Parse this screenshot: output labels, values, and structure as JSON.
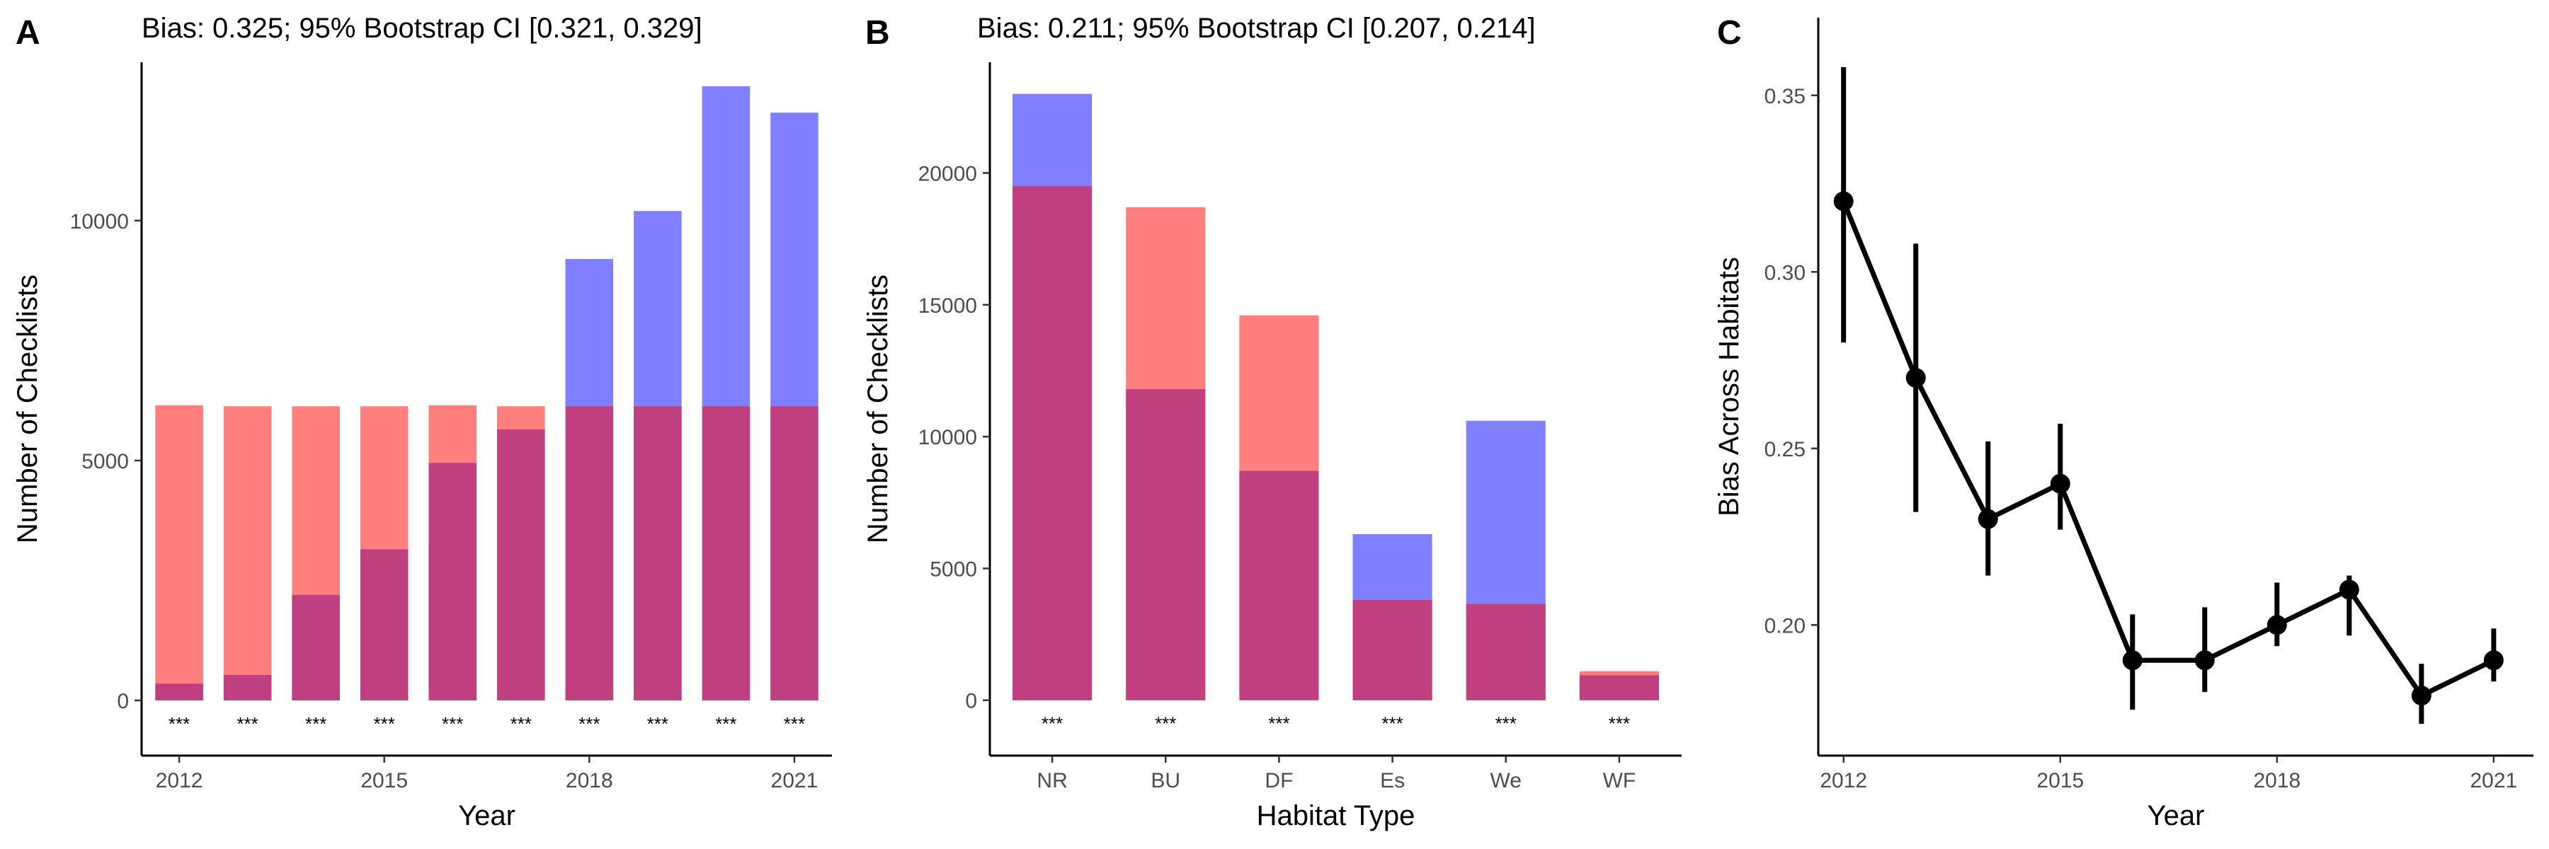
{
  "colors": {
    "blue": "#0000ff",
    "red": "#ff0000",
    "ink": "#000000"
  },
  "chart_data": [
    {
      "panel": "A",
      "type": "bar",
      "title": "Bias: 0.325; 95% Bootstrap CI [0.321, 0.329]",
      "xlabel": "Year",
      "ylabel": "Number of Checklists",
      "categories": [
        "2012",
        "2013",
        "2014",
        "2015",
        "2016",
        "2017",
        "2018",
        "2019",
        "2020",
        "2021"
      ],
      "x_tick_labels": [
        "2012",
        "2015",
        "2018",
        "2021"
      ],
      "y_ticks": [
        0,
        5000,
        10000
      ],
      "ylim": [
        -1150,
        13300
      ],
      "series": [
        {
          "color": "blue",
          "values": [
            350,
            530,
            2200,
            3150,
            4950,
            5650,
            9200,
            10200,
            12800,
            12250
          ]
        },
        {
          "color": "red",
          "values": [
            6150,
            6130,
            6130,
            6130,
            6150,
            6130,
            6130,
            6130,
            6130,
            6130
          ]
        }
      ],
      "annotations": [
        "***",
        "***",
        "***",
        "***",
        "***",
        "***",
        "***",
        "***",
        "***",
        "***"
      ],
      "grid": false,
      "legend": "none"
    },
    {
      "panel": "B",
      "type": "bar",
      "title": "Bias: 0.211; 95% Bootstrap CI [0.207, 0.214]",
      "xlabel": "Habitat Type",
      "ylabel": "Number of Checklists",
      "categories": [
        "NR",
        "BU",
        "DF",
        "Es",
        "We",
        "WF"
      ],
      "y_ticks": [
        0,
        5000,
        10000,
        15000,
        20000
      ],
      "ylim": [
        -2100,
        24200
      ],
      "series": [
        {
          "color": "blue",
          "values": [
            23000,
            11800,
            8700,
            6300,
            10600,
            950
          ]
        },
        {
          "color": "red",
          "values": [
            19500,
            18700,
            14600,
            3800,
            3650,
            1100
          ]
        }
      ],
      "annotations": [
        "***",
        "***",
        "***",
        "***",
        "***",
        "***"
      ],
      "grid": false,
      "legend": "none"
    },
    {
      "panel": "C",
      "type": "line",
      "title": "",
      "xlabel": "Year",
      "ylabel": "Bias Across Habitats",
      "x": [
        2012,
        2013,
        2014,
        2015,
        2016,
        2017,
        2018,
        2019,
        2020,
        2021
      ],
      "y": [
        0.32,
        0.27,
        0.23,
        0.24,
        0.19,
        0.19,
        0.2,
        0.21,
        0.18,
        0.19
      ],
      "y_lower": [
        0.28,
        0.232,
        0.214,
        0.227,
        0.176,
        0.181,
        0.194,
        0.197,
        0.172,
        0.184
      ],
      "y_upper": [
        0.358,
        0.308,
        0.252,
        0.257,
        0.203,
        0.205,
        0.212,
        0.214,
        0.189,
        0.199
      ],
      "x_ticks": [
        2012,
        2015,
        2018,
        2021
      ],
      "y_ticks": [
        0.2,
        0.25,
        0.3,
        0.35
      ],
      "y_tick_labels": [
        "0.20",
        "0.25",
        "0.30",
        "0.35"
      ],
      "xlim": [
        2011.65,
        2021.55
      ],
      "ylim": [
        0.163,
        0.372
      ],
      "grid": false,
      "legend": "none"
    }
  ]
}
